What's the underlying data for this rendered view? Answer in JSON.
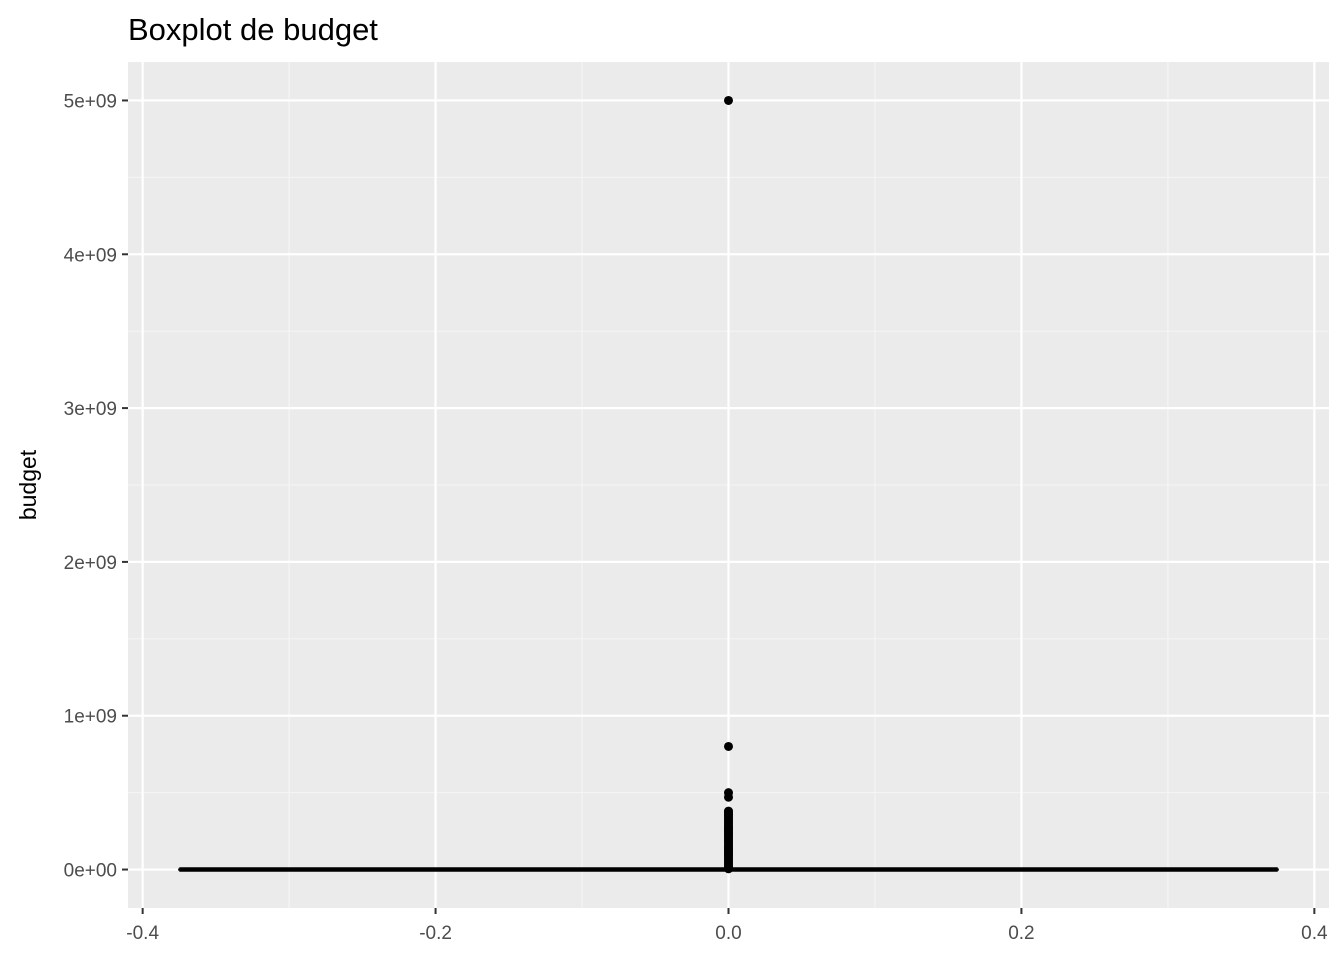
{
  "chart_data": {
    "type": "boxplot",
    "title": "Boxplot de budget",
    "xlabel": "",
    "ylabel": "budget",
    "x_ticks": [
      -0.4,
      -0.2,
      0.0,
      0.2,
      0.4
    ],
    "x_tick_labels": [
      "-0.4",
      "-0.2",
      "0.0",
      "0.2",
      "0.4"
    ],
    "y_ticks": [
      0,
      1000000000,
      2000000000,
      3000000000,
      4000000000,
      5000000000
    ],
    "y_tick_labels": [
      "0e+00",
      "1e+09",
      "2e+09",
      "3e+09",
      "4e+09",
      "5e+09"
    ],
    "xlim": [
      -0.41,
      0.41
    ],
    "ylim": [
      -250000000,
      5250000000
    ],
    "grid": true,
    "box": {
      "x_center": 0.0,
      "x_left": -0.375,
      "x_right": 0.375,
      "q1": 0,
      "median": 0,
      "q3": 0,
      "whisker_low": 0,
      "whisker_high": 0
    },
    "outliers": [
      5000000000,
      800000000,
      500000000,
      470000000,
      380000000,
      370000000,
      360000000,
      350000000,
      340000000,
      330000000,
      320000000,
      310000000,
      300000000,
      290000000,
      280000000,
      270000000,
      260000000,
      250000000,
      240000000,
      230000000,
      220000000,
      210000000,
      200000000,
      190000000,
      180000000,
      170000000,
      160000000,
      150000000,
      140000000,
      130000000,
      120000000,
      110000000,
      100000000,
      90000000,
      80000000,
      70000000,
      60000000,
      50000000,
      40000000,
      30000000,
      20000000,
      10000000,
      5000000
    ],
    "colors": {
      "panel_background": "#ebebeb",
      "grid_major": "#ffffff",
      "grid_minor": "#f5f5f5",
      "box_line": "#000000",
      "points": "#000000"
    }
  }
}
